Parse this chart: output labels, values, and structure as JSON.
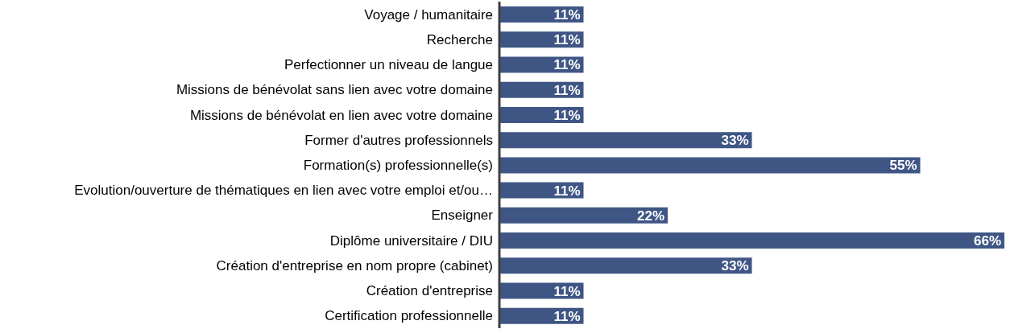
{
  "chart_data": {
    "type": "bar",
    "orientation": "horizontal",
    "categories": [
      "Voyage / humanitaire",
      "Recherche",
      "Perfectionner un niveau de langue",
      "Missions de bénévolat sans lien avec votre domaine",
      "Missions de bénévolat en lien avec votre domaine",
      "Former d'autres professionnels",
      "Formation(s) professionnelle(s)",
      "Evolution/ouverture de thématiques en lien avec votre emploi et/ou…",
      "Enseigner",
      "Diplôme universitaire / DIU",
      "Création d'entreprise en nom propre (cabinet)",
      "Création d'entreprise",
      "Certification professionnelle"
    ],
    "values": [
      11,
      11,
      11,
      11,
      11,
      33,
      55,
      11,
      22,
      66,
      33,
      11,
      11
    ],
    "value_labels": [
      "11%",
      "11%",
      "11%",
      "11%",
      "11%",
      "33%",
      "55%",
      "11%",
      "22%",
      "66%",
      "33%",
      "11%",
      "11%"
    ],
    "color": "#3f5685",
    "xlim": [
      0,
      70
    ],
    "tick_labels": "y"
  }
}
